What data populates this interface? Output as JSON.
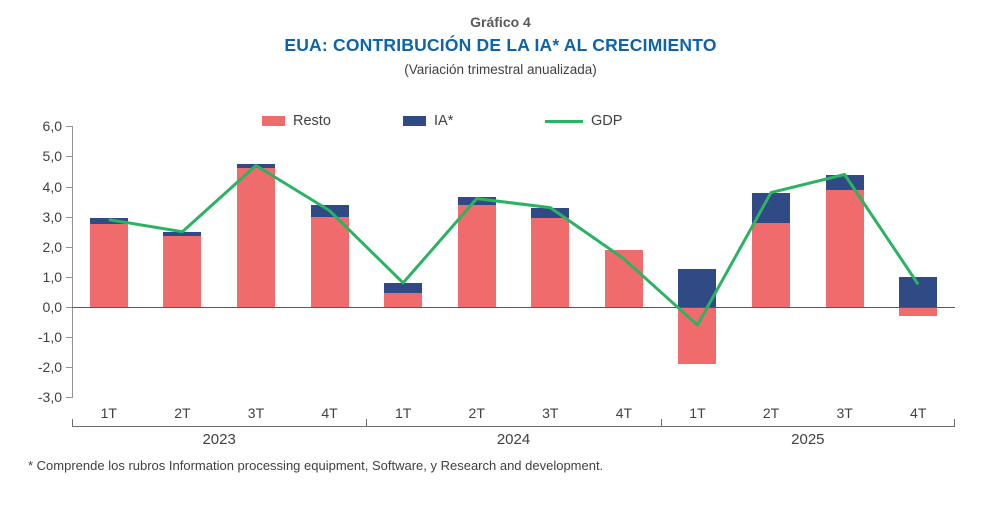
{
  "header": {
    "kicker": "Gráfico 4",
    "title": "EUA: CONTRIBUCIÓN DE LA IA* AL CRECIMIENTO",
    "subtitle": "(Variación trimestral anualizada)"
  },
  "legend": [
    {
      "label": "Resto",
      "type": "square",
      "color": "#F06B6B"
    },
    {
      "label": "IA*",
      "type": "square",
      "color": "#2F4A84"
    },
    {
      "label": "GDP",
      "type": "line",
      "color": "#2BB364"
    }
  ],
  "footnote": "* Comprende los rubros Information processing equipment, Software, y Research and development.",
  "colors": {
    "title_blue": "#0F64A9",
    "resto_red": "#F06B6B",
    "ia_navy": "#2F4A84",
    "gdp_green": "#2BB364",
    "axis_gray": "#939598"
  },
  "chart_data": {
    "type": "bar",
    "subtype": "stacked bars with line overlay",
    "categories": [
      "1T",
      "2T",
      "3T",
      "4T",
      "1T",
      "2T",
      "3T",
      "4T",
      "1T",
      "2T",
      "3T",
      "4T"
    ],
    "year_groups": [
      {
        "label": "2023"
      },
      {
        "label": "2024"
      },
      {
        "label": "2025"
      }
    ],
    "series": [
      {
        "name": "Resto",
        "type": "bar",
        "color": "#F06B6B",
        "values": [
          2.75,
          2.35,
          4.6,
          3.0,
          0.45,
          3.4,
          2.95,
          1.9,
          -1.85,
          2.8,
          3.9,
          -0.25
        ]
      },
      {
        "name": "IA*",
        "type": "bar",
        "color": "#2F4A84",
        "values": [
          0.2,
          0.15,
          0.15,
          0.4,
          0.35,
          0.25,
          0.35,
          0.0,
          1.25,
          1.0,
          0.5,
          1.0
        ]
      },
      {
        "name": "GDP",
        "type": "line",
        "color": "#2BB364",
        "values": [
          2.9,
          2.5,
          4.7,
          3.2,
          0.8,
          3.6,
          3.3,
          1.6,
          -0.6,
          3.8,
          4.4,
          0.75
        ]
      }
    ],
    "y_ticks": [
      "6,0",
      "5,0",
      "4,0",
      "3,0",
      "2,0",
      "1,0",
      "0,0",
      "-1,0",
      "-2,0",
      "-3,0"
    ],
    "ylim": [
      -3.0,
      6.0
    ],
    "xlabel": "",
    "ylabel": "",
    "grid": false,
    "legend_position": "top"
  }
}
